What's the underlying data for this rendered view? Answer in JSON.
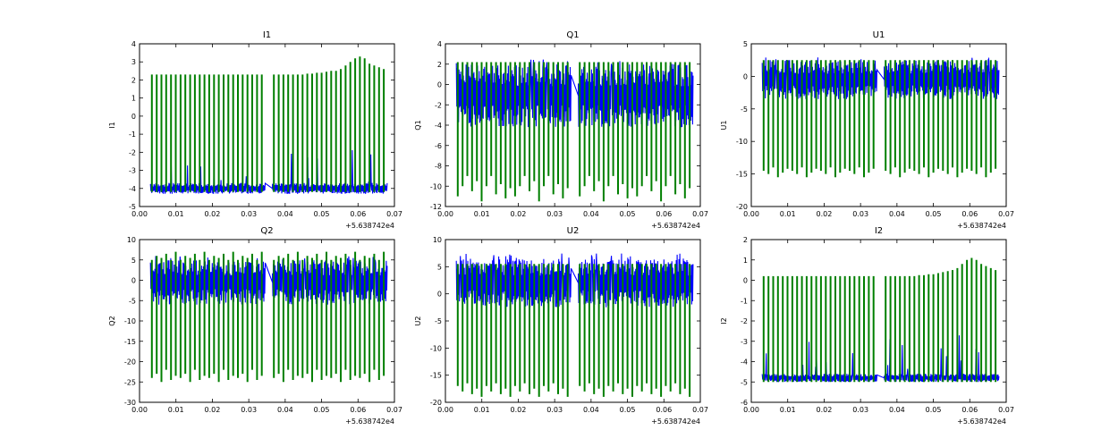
{
  "chart_data": [
    {
      "type": "line",
      "title": "I1",
      "ylabel": "I1",
      "xlabel": "",
      "x_offset_label": "+5.638742e4",
      "xlim": [
        0.0,
        0.07
      ],
      "ylim": [
        -5,
        4
      ],
      "xticks": [
        "0.00",
        "0.01",
        "0.02",
        "0.03",
        "0.04",
        "0.05",
        "0.06",
        "0.07"
      ],
      "yticks": [
        "-5",
        "-4",
        "-3",
        "-2",
        "-1",
        "0",
        "1",
        "2",
        "3",
        "4"
      ],
      "segments": [
        [
          0.003,
          0.0345
        ],
        [
          0.0365,
          0.068
        ]
      ],
      "series": [
        {
          "name": "trace-green",
          "color": "#007f00",
          "style": "periodic-spikes",
          "base": -4.0,
          "spike_count": 48,
          "spike_peaks": [
            2.3,
            2.3,
            2.3,
            2.3,
            2.3,
            2.3,
            2.3,
            2.3,
            2.3,
            2.3,
            2.3,
            2.3,
            2.3,
            2.3,
            2.3,
            2.3,
            2.3,
            2.3,
            2.3,
            2.3,
            2.3,
            2.3,
            2.3,
            2.3,
            2.3,
            2.3,
            2.3,
            2.3,
            2.3,
            2.3,
            2.3,
            2.35,
            2.35,
            2.4,
            2.4,
            2.45,
            2.5,
            2.5,
            2.6,
            2.8,
            3.0,
            3.2,
            3.3,
            3.2,
            2.9,
            2.8,
            2.7,
            2.6
          ],
          "spike_mins": [
            -4.2
          ]
        },
        {
          "name": "trace-blue",
          "color": "#0000ff",
          "style": "noise-band",
          "band": [
            -4.3,
            -3.7
          ],
          "burst_max": -1.6
        }
      ]
    },
    {
      "type": "line",
      "title": "Q1",
      "ylabel": "Q1",
      "xlabel": "",
      "x_offset_label": "+5.638742e4",
      "xlim": [
        0.0,
        0.07
      ],
      "ylim": [
        -12,
        4
      ],
      "xticks": [
        "0.00",
        "0.01",
        "0.02",
        "0.03",
        "0.04",
        "0.05",
        "0.06",
        "0.07"
      ],
      "yticks": [
        "-12",
        "-10",
        "-8",
        "-6",
        "-4",
        "-2",
        "0",
        "2",
        "4"
      ],
      "segments": [
        [
          0.003,
          0.0345
        ],
        [
          0.0365,
          0.068
        ]
      ],
      "series": [
        {
          "name": "trace-green",
          "color": "#007f00",
          "style": "periodic-spikes",
          "base": -1.0,
          "spike_count": 48,
          "spike_peaks": [
            2.2
          ],
          "spike_mins": [
            -11.0,
            -10.0,
            -9.0,
            -10.5,
            -9.5,
            -11.5,
            -10.0,
            -9.0,
            -10.8,
            -9.8,
            -11.2,
            -10.2
          ]
        },
        {
          "name": "trace-blue",
          "color": "#0000ff",
          "style": "noise-band",
          "band": [
            -4.2,
            2.0
          ],
          "burst_max": 2.5
        }
      ]
    },
    {
      "type": "line",
      "title": "U1",
      "ylabel": "U1",
      "xlabel": "",
      "x_offset_label": "+5.638742e4",
      "xlim": [
        0.0,
        0.07
      ],
      "ylim": [
        -20,
        5
      ],
      "xticks": [
        "0.00",
        "0.01",
        "0.02",
        "0.03",
        "0.04",
        "0.05",
        "0.06",
        "0.07"
      ],
      "yticks": [
        "-20",
        "-15",
        "-10",
        "-5",
        "0",
        "5"
      ],
      "segments": [
        [
          0.003,
          0.0345
        ],
        [
          0.0365,
          0.068
        ]
      ],
      "series": [
        {
          "name": "trace-green",
          "color": "#007f00",
          "style": "periodic-spikes",
          "base": -1.0,
          "spike_count": 48,
          "spike_peaks": [
            2.5
          ],
          "spike_mins": [
            -14.5,
            -15.0,
            -14.0,
            -15.5,
            -14.8,
            -14.2
          ]
        },
        {
          "name": "trace-blue",
          "color": "#0000ff",
          "style": "noise-band",
          "band": [
            -3.5,
            2.5
          ],
          "burst_max": 3.0
        }
      ]
    },
    {
      "type": "line",
      "title": "Q2",
      "ylabel": "Q2",
      "xlabel": "",
      "x_offset_label": "+5.638742e4",
      "xlim": [
        0.0,
        0.07
      ],
      "ylim": [
        -30,
        10
      ],
      "xticks": [
        "0.00",
        "0.01",
        "0.02",
        "0.03",
        "0.04",
        "0.05",
        "0.06",
        "0.07"
      ],
      "yticks": [
        "-30",
        "-25",
        "-20",
        "-15",
        "-10",
        "-5",
        "0",
        "5",
        "10"
      ],
      "segments": [
        [
          0.003,
          0.0345
        ],
        [
          0.0365,
          0.068
        ]
      ],
      "series": [
        {
          "name": "trace-green",
          "color": "#007f00",
          "style": "periodic-spikes",
          "base": -1.0,
          "spike_count": 48,
          "spike_peaks": [
            5.0,
            6.0,
            5.5,
            6.5,
            5.0,
            7.0
          ],
          "spike_mins": [
            -24.0,
            -23.0,
            -25.0,
            -22.0,
            -24.5,
            -23.5
          ]
        },
        {
          "name": "trace-blue",
          "color": "#0000ff",
          "style": "noise-band",
          "band": [
            -6.0,
            5.0
          ],
          "burst_max": 6.0
        }
      ]
    },
    {
      "type": "line",
      "title": "U2",
      "ylabel": "U2",
      "xlabel": "",
      "x_offset_label": "+5.638742e4",
      "xlim": [
        0.0,
        0.07
      ],
      "ylim": [
        -20,
        10
      ],
      "xticks": [
        "0.00",
        "0.01",
        "0.02",
        "0.03",
        "0.04",
        "0.05",
        "0.06",
        "0.07"
      ],
      "yticks": [
        "-20",
        "-15",
        "-10",
        "-5",
        "0",
        "5",
        "10"
      ],
      "segments": [
        [
          0.003,
          0.0345
        ],
        [
          0.0365,
          0.068
        ]
      ],
      "series": [
        {
          "name": "trace-green",
          "color": "#007f00",
          "style": "periodic-spikes",
          "base": 0.5,
          "spike_count": 48,
          "spike_peaks": [
            5.5
          ],
          "spike_mins": [
            -17.0,
            -18.0,
            -16.5,
            -18.5,
            -17.5,
            -19.0
          ]
        },
        {
          "name": "trace-blue",
          "color": "#0000ff",
          "style": "noise-band",
          "band": [
            -2.5,
            6.5
          ],
          "burst_max": 7.5
        }
      ]
    },
    {
      "type": "line",
      "title": "I2",
      "ylabel": "I2",
      "xlabel": "",
      "x_offset_label": "+5.638742e4",
      "xlim": [
        0.0,
        0.07
      ],
      "ylim": [
        -6,
        2
      ],
      "xticks": [
        "0.00",
        "0.01",
        "0.02",
        "0.03",
        "0.04",
        "0.05",
        "0.06",
        "0.07"
      ],
      "yticks": [
        "-6",
        "-5",
        "-4",
        "-3",
        "-2",
        "-1",
        "0",
        "1",
        "2"
      ],
      "segments": [
        [
          0.003,
          0.0345
        ],
        [
          0.0365,
          0.068
        ]
      ],
      "series": [
        {
          "name": "trace-green",
          "color": "#007f00",
          "style": "periodic-spikes",
          "base": -4.8,
          "spike_count": 48,
          "spike_peaks": [
            0.2,
            0.2,
            0.2,
            0.2,
            0.2,
            0.2,
            0.2,
            0.2,
            0.2,
            0.2,
            0.2,
            0.2,
            0.2,
            0.2,
            0.2,
            0.2,
            0.2,
            0.2,
            0.2,
            0.2,
            0.2,
            0.2,
            0.2,
            0.2,
            0.2,
            0.2,
            0.2,
            0.2,
            0.2,
            0.2,
            0.2,
            0.25,
            0.25,
            0.3,
            0.3,
            0.35,
            0.4,
            0.45,
            0.5,
            0.6,
            0.8,
            1.0,
            1.1,
            1.0,
            0.8,
            0.7,
            0.6,
            0.5
          ],
          "spike_mins": [
            -5.0
          ]
        },
        {
          "name": "trace-blue",
          "color": "#0000ff",
          "style": "noise-band",
          "band": [
            -5.0,
            -4.6
          ],
          "burst_max": -2.6
        }
      ]
    }
  ]
}
